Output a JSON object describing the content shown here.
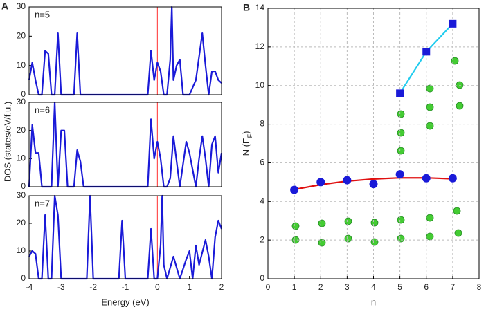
{
  "chart_data": [
    {
      "type": "line",
      "panel": "A",
      "annotation": "n=5",
      "xlim": [
        -4,
        2
      ],
      "ylim": [
        0,
        30
      ],
      "yticks": [
        0,
        10,
        20,
        30
      ],
      "vline": 0,
      "vline_color": "#ff3030",
      "series": [
        {
          "color": "#1a1ad8",
          "x": [
            -4,
            -3.9,
            -3.8,
            -3.7,
            -3.6,
            -3.5,
            -3.4,
            -3.3,
            -3.2,
            -3.1,
            -3.0,
            -2.9,
            -2.8,
            -2.6,
            -2.5,
            -2.4,
            -2.3,
            -2.0,
            -1.0,
            -0.3,
            -0.2,
            -0.1,
            0,
            0.1,
            0.2,
            0.3,
            0.4,
            0.45,
            0.5,
            0.6,
            0.7,
            0.8,
            0.9,
            1.0,
            1.2,
            1.4,
            1.5,
            1.6,
            1.7,
            1.8,
            1.9,
            2.0
          ],
          "values": [
            5,
            11,
            5,
            0,
            0,
            15,
            14,
            0,
            0,
            21,
            0,
            0,
            0,
            0,
            21,
            0,
            0,
            0,
            0,
            0,
            15,
            5,
            11,
            8,
            0,
            0,
            12,
            30,
            5,
            10,
            12,
            0,
            0,
            0,
            5,
            21,
            10,
            0,
            8,
            8,
            5,
            4
          ]
        }
      ]
    },
    {
      "type": "line",
      "annotation": "n=6",
      "ylabel": "DOS (states/eV/f.u.)",
      "xlim": [
        -4,
        2
      ],
      "ylim": [
        0,
        30
      ],
      "yticks": [
        0,
        10,
        20,
        30
      ],
      "vline": 0,
      "vline_color": "#ff3030",
      "series": [
        {
          "color": "#1a1ad8",
          "x": [
            -4,
            -3.9,
            -3.8,
            -3.7,
            -3.6,
            -3.5,
            -3.3,
            -3.2,
            -3.1,
            -3.0,
            -2.9,
            -2.8,
            -2.6,
            -2.5,
            -2.4,
            -2.3,
            -2.0,
            -1.0,
            -0.3,
            -0.2,
            -0.1,
            0,
            0.1,
            0.2,
            0.3,
            0.4,
            0.5,
            0.7,
            0.8,
            0.9,
            1.0,
            1.2,
            1.3,
            1.4,
            1.5,
            1.6,
            1.7,
            1.8,
            1.9,
            2.0
          ],
          "values": [
            0,
            22,
            12,
            12,
            0,
            0,
            0,
            30,
            0,
            20,
            20,
            0,
            0,
            13,
            9,
            0,
            0,
            0,
            0,
            24,
            10,
            16,
            10,
            0,
            0,
            3,
            18,
            0,
            8,
            16,
            12,
            0,
            10,
            18,
            10,
            0,
            15,
            18,
            5,
            12
          ]
        }
      ]
    },
    {
      "type": "line",
      "annotation": "n=7",
      "xlabel": "Energy (eV)",
      "xlim": [
        -4,
        2
      ],
      "xticks": [
        -4,
        -3,
        -2,
        -1,
        0,
        1,
        2
      ],
      "ylim": [
        0,
        30
      ],
      "yticks": [
        0,
        10,
        20,
        30
      ],
      "vline": 0,
      "vline_color": "#ff3030",
      "series": [
        {
          "color": "#1a1ad8",
          "x": [
            -4,
            -3.9,
            -3.8,
            -3.7,
            -3.6,
            -3.5,
            -3.4,
            -3.3,
            -3.2,
            -3.1,
            -3.0,
            -2.8,
            -2.2,
            -2.1,
            -2.0,
            -1.5,
            -1.2,
            -1.1,
            -1.0,
            -0.3,
            -0.2,
            -0.1,
            0,
            0.1,
            0.15,
            0.2,
            0.3,
            0.5,
            0.7,
            0.9,
            1.0,
            1.1,
            1.2,
            1.3,
            1.5,
            1.6,
            1.7,
            1.8,
            1.9,
            2.0
          ],
          "values": [
            8,
            10,
            9,
            0,
            0,
            23,
            0,
            0,
            30,
            23,
            0,
            0,
            0,
            30,
            0,
            0,
            0,
            21,
            0,
            0,
            18,
            0,
            0,
            12,
            30,
            5,
            0,
            8,
            0,
            7,
            10,
            0,
            12,
            5,
            14,
            8,
            0,
            15,
            21,
            18
          ]
        }
      ]
    },
    {
      "type": "scatter",
      "panel": "B",
      "xlabel": "n",
      "ylabel": [
        "N (E",
        "F",
        ")"
      ],
      "xlim": [
        0,
        8
      ],
      "xticks": [
        0,
        1,
        2,
        3,
        4,
        5,
        6,
        7,
        8
      ],
      "ylim": [
        0,
        14
      ],
      "yticks": [
        0,
        2,
        4,
        6,
        8,
        10,
        12,
        14
      ],
      "grid": true,
      "series": [
        {
          "line_color": "#e01010",
          "x": [
            1,
            2,
            3,
            4,
            5,
            6,
            7
          ],
          "values": [
            4.62,
            4.87,
            5.05,
            5.16,
            5.22,
            5.22,
            5.17
          ]
        },
        {
          "color": "#1a1ad8",
          "marker": "circle",
          "x": [
            1,
            2,
            3,
            4,
            5,
            6,
            7
          ],
          "values": [
            4.6,
            5.0,
            5.1,
            4.9,
            5.4,
            5.2,
            5.2
          ]
        },
        {
          "color": "#1a1ad8",
          "marker": "square",
          "line_color": "#22ccee",
          "x": [
            5,
            6,
            7
          ],
          "values": [
            9.6,
            11.75,
            13.2
          ]
        }
      ]
    }
  ]
}
